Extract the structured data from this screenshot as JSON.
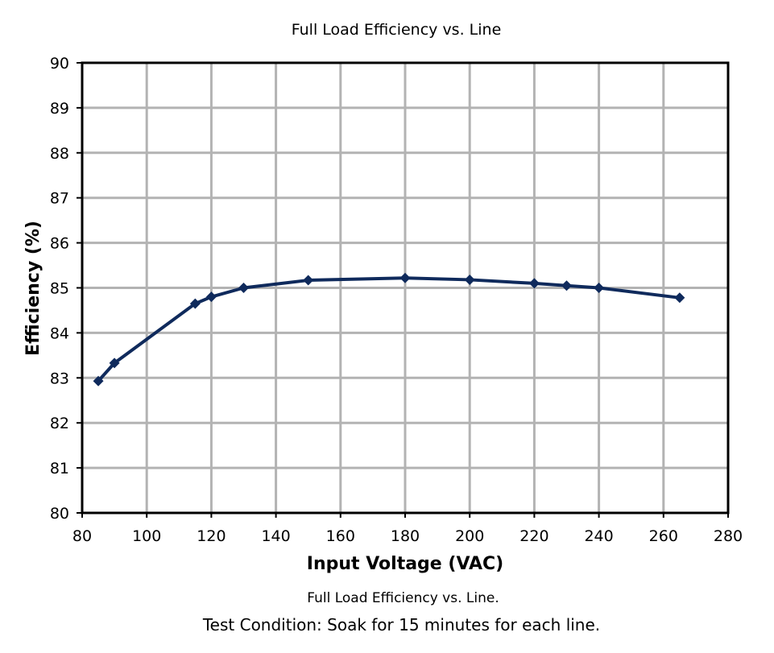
{
  "chart_data": {
    "type": "line",
    "title": "Full Load Efficiency vs. Line",
    "xlabel": "Input Voltage (VAC)",
    "ylabel": "Efficiency (%)",
    "xlim": [
      80,
      280
    ],
    "ylim": [
      80,
      90
    ],
    "xticks": [
      80,
      100,
      120,
      140,
      160,
      180,
      200,
      220,
      240,
      260,
      280
    ],
    "yticks": [
      80,
      81,
      82,
      83,
      84,
      85,
      86,
      87,
      88,
      89,
      90
    ],
    "grid": true,
    "legend": "none",
    "series": [
      {
        "name": "Full Load Efficiency",
        "color": "#0f2a5c",
        "marker": "diamond",
        "x": [
          85,
          90,
          115,
          120,
          130,
          150,
          180,
          200,
          220,
          230,
          240,
          265
        ],
        "y": [
          82.93,
          83.33,
          84.65,
          84.8,
          85.0,
          85.17,
          85.22,
          85.18,
          85.1,
          85.05,
          85.0,
          84.78
        ]
      }
    ]
  },
  "captions": {
    "caption_1": "Full Load Efficiency vs. Line.",
    "caption_2": "Test Condition: Soak for 15 minutes for each line."
  },
  "colors": {
    "grid": "#b3b3b3",
    "frame": "#000000",
    "line": "#0f2a5c"
  }
}
